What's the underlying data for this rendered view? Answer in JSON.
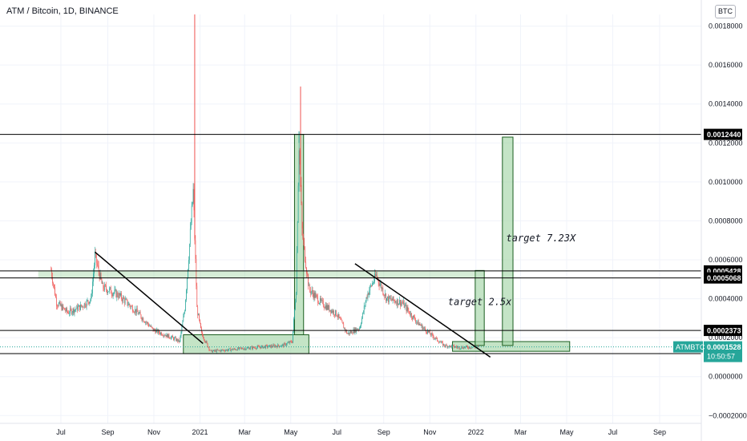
{
  "header": {
    "title": "ATM / Bitcoin, 1D, BINANCE",
    "currency_badge": "BTC"
  },
  "colors": {
    "up": "#26a69a",
    "down": "#ef5350",
    "zone_fill": "#a5d6a7",
    "zone_stroke": "#1b5e20",
    "line": "#000000",
    "price_label_bg": "#000000",
    "current_label_bg": "#26a69a"
  },
  "chart_data": {
    "type": "candlestick",
    "symbol": "ATMBTC",
    "ylim": [
      -0.00024,
      0.00186
    ],
    "y_ticks": [
      {
        "value": 0.0018,
        "label": "0.0018000"
      },
      {
        "value": 0.0016,
        "label": "0.0016000"
      },
      {
        "value": 0.0014,
        "label": "0.0014000"
      },
      {
        "value": 0.0012,
        "label": "0.0012000"
      },
      {
        "value": 0.001,
        "label": "0.0010000"
      },
      {
        "value": 0.0008,
        "label": "0.0008000"
      },
      {
        "value": 0.0006,
        "label": "0.0006000"
      },
      {
        "value": 0.0004,
        "label": "0.0004000"
      },
      {
        "value": 0.0002,
        "label": "0.0002000"
      },
      {
        "value": 0.0,
        "label": "0.0000000"
      },
      {
        "value": -0.0002,
        "label": "−0.0002000"
      }
    ],
    "x_ticks": [
      {
        "date": "2020-07-01",
        "label": "Jul"
      },
      {
        "date": "2020-09-01",
        "label": "Sep"
      },
      {
        "date": "2020-11-01",
        "label": "Nov"
      },
      {
        "date": "2021-01-01",
        "label": "2021"
      },
      {
        "date": "2021-03-01",
        "label": "Mar"
      },
      {
        "date": "2021-05-01",
        "label": "May"
      },
      {
        "date": "2021-07-01",
        "label": "Jul"
      },
      {
        "date": "2021-09-01",
        "label": "Sep"
      },
      {
        "date": "2021-11-01",
        "label": "Nov"
      },
      {
        "date": "2022-01-01",
        "label": "2022"
      },
      {
        "date": "2022-03-01",
        "label": "Mar"
      },
      {
        "date": "2022-05-01",
        "label": "May"
      },
      {
        "date": "2022-07-01",
        "label": "Jul"
      },
      {
        "date": "2022-09-01",
        "label": "Sep"
      }
    ],
    "price_keypoints": [
      [
        "2020-06-18",
        0.00055
      ],
      [
        "2020-06-25",
        0.00038
      ],
      [
        "2020-07-10",
        0.00033
      ],
      [
        "2020-07-28",
        0.00036
      ],
      [
        "2020-08-10",
        0.0004
      ],
      [
        "2020-08-15",
        0.00062
      ],
      [
        "2020-08-25",
        0.00046
      ],
      [
        "2020-09-15",
        0.00042
      ],
      [
        "2020-10-10",
        0.00033
      ],
      [
        "2020-10-31",
        0.00024
      ],
      [
        "2020-11-25",
        0.0002
      ],
      [
        "2020-12-05",
        0.00018
      ],
      [
        "2020-12-12",
        0.00035
      ],
      [
        "2020-12-18",
        0.00068
      ],
      [
        "2020-12-23",
        0.00095
      ],
      [
        "2020-12-28",
        0.00035
      ],
      [
        "2021-01-03",
        0.00022
      ],
      [
        "2021-01-15",
        0.00013
      ],
      [
        "2021-02-15",
        0.00014
      ],
      [
        "2021-03-15",
        0.00015
      ],
      [
        "2021-04-20",
        0.00016
      ],
      [
        "2021-05-03",
        0.00018
      ],
      [
        "2021-05-08",
        0.00045
      ],
      [
        "2021-05-12",
        0.0012
      ],
      [
        "2021-05-16",
        0.00075
      ],
      [
        "2021-05-25",
        0.00045
      ],
      [
        "2021-06-10",
        0.00038
      ],
      [
        "2021-07-01",
        0.00032
      ],
      [
        "2021-07-15",
        0.00022
      ],
      [
        "2021-07-31",
        0.00025
      ],
      [
        "2021-08-10",
        0.00042
      ],
      [
        "2021-08-22",
        0.00052
      ],
      [
        "2021-09-05",
        0.0004
      ],
      [
        "2021-09-25",
        0.00038
      ],
      [
        "2021-10-15",
        0.00028
      ],
      [
        "2021-11-01",
        0.00022
      ],
      [
        "2021-11-20",
        0.00016
      ],
      [
        "2021-12-10",
        0.00015
      ],
      [
        "2022-01-05",
        0.000153
      ]
    ],
    "spikes": [
      {
        "date": "2020-12-25",
        "high": 0.00186,
        "color": "down"
      },
      {
        "date": "2021-05-14",
        "high": 0.00149,
        "color": "down"
      },
      {
        "date": "2021-05-12",
        "high": 0.00126,
        "color": "up"
      }
    ],
    "horizontal_levels": [
      {
        "value": 0.001244,
        "label": "0.0012440"
      },
      {
        "value": 0.0005428,
        "label": "0.0005428"
      },
      {
        "value": 0.0005068,
        "label": "0.0005068"
      },
      {
        "value": 0.0002373,
        "label": "0.0002373"
      },
      {
        "value": 0.0001184,
        "label": "0.0001184"
      }
    ],
    "current_price": {
      "symbol": "ATMBTC",
      "value": 0.0001528,
      "label": "0.0001528",
      "countdown": "10:50:57"
    },
    "trendlines": [
      {
        "from": [
          "2020-08-15",
          0.00064
        ],
        "to": [
          "2021-01-05",
          0.00017
        ]
      },
      {
        "from": [
          "2021-07-25",
          0.00058
        ],
        "to": [
          "2022-01-20",
          0.0001
        ]
      }
    ],
    "zones": [
      {
        "x0": "2020-12-10",
        "x1": "2021-05-25",
        "y0": 0.000118,
        "y1": 0.000215
      },
      {
        "x0": "2021-05-06",
        "x1": "2021-05-18",
        "y0": 0.000215,
        "y1": 0.001244
      },
      {
        "x0": "2021-12-01",
        "x1": "2022-05-05",
        "y0": 0.00013,
        "y1": 0.00018
      },
      {
        "x0": "2021-12-31",
        "x1": "2022-01-12",
        "y0": 0.00016,
        "y1": 0.000545
      },
      {
        "x0": "2022-02-05",
        "x1": "2022-02-19",
        "y0": 0.00016,
        "y1": 0.00123
      },
      {
        "x0": "2020-06-01",
        "x1": "2021-12-31",
        "y0": 0.000508,
        "y1": 0.000545
      }
    ],
    "annotations": [
      {
        "text": "target  2.5x",
        "date": "2021-11-25",
        "value": 0.000368
      },
      {
        "text": "target  7.23X",
        "date": "2022-02-10",
        "value": 0.000695
      }
    ]
  }
}
